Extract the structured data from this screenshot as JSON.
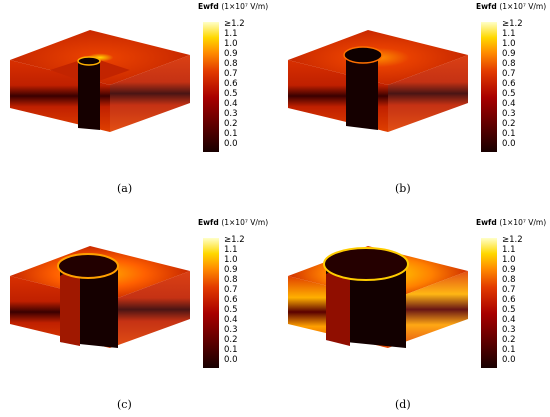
{
  "colorbar": {
    "title": "Ewfd",
    "unit": "(1×10⁷ V/m)",
    "ticks": [
      "≥1.2",
      "1.1",
      "1.0",
      "0.9",
      "0.8",
      "0.7",
      "0.6",
      "0.5",
      "0.4",
      "0.3",
      "0.2",
      "0.1",
      "0.0"
    ]
  },
  "panels": [
    {
      "caption": "(a)",
      "hole_radius_fraction": 0.12
    },
    {
      "caption": "(b)",
      "hole_radius_fraction": 0.3
    },
    {
      "caption": "(c)",
      "hole_radius_fraction": 0.45
    },
    {
      "caption": "(d)",
      "hole_radius_fraction": 0.6
    }
  ]
}
